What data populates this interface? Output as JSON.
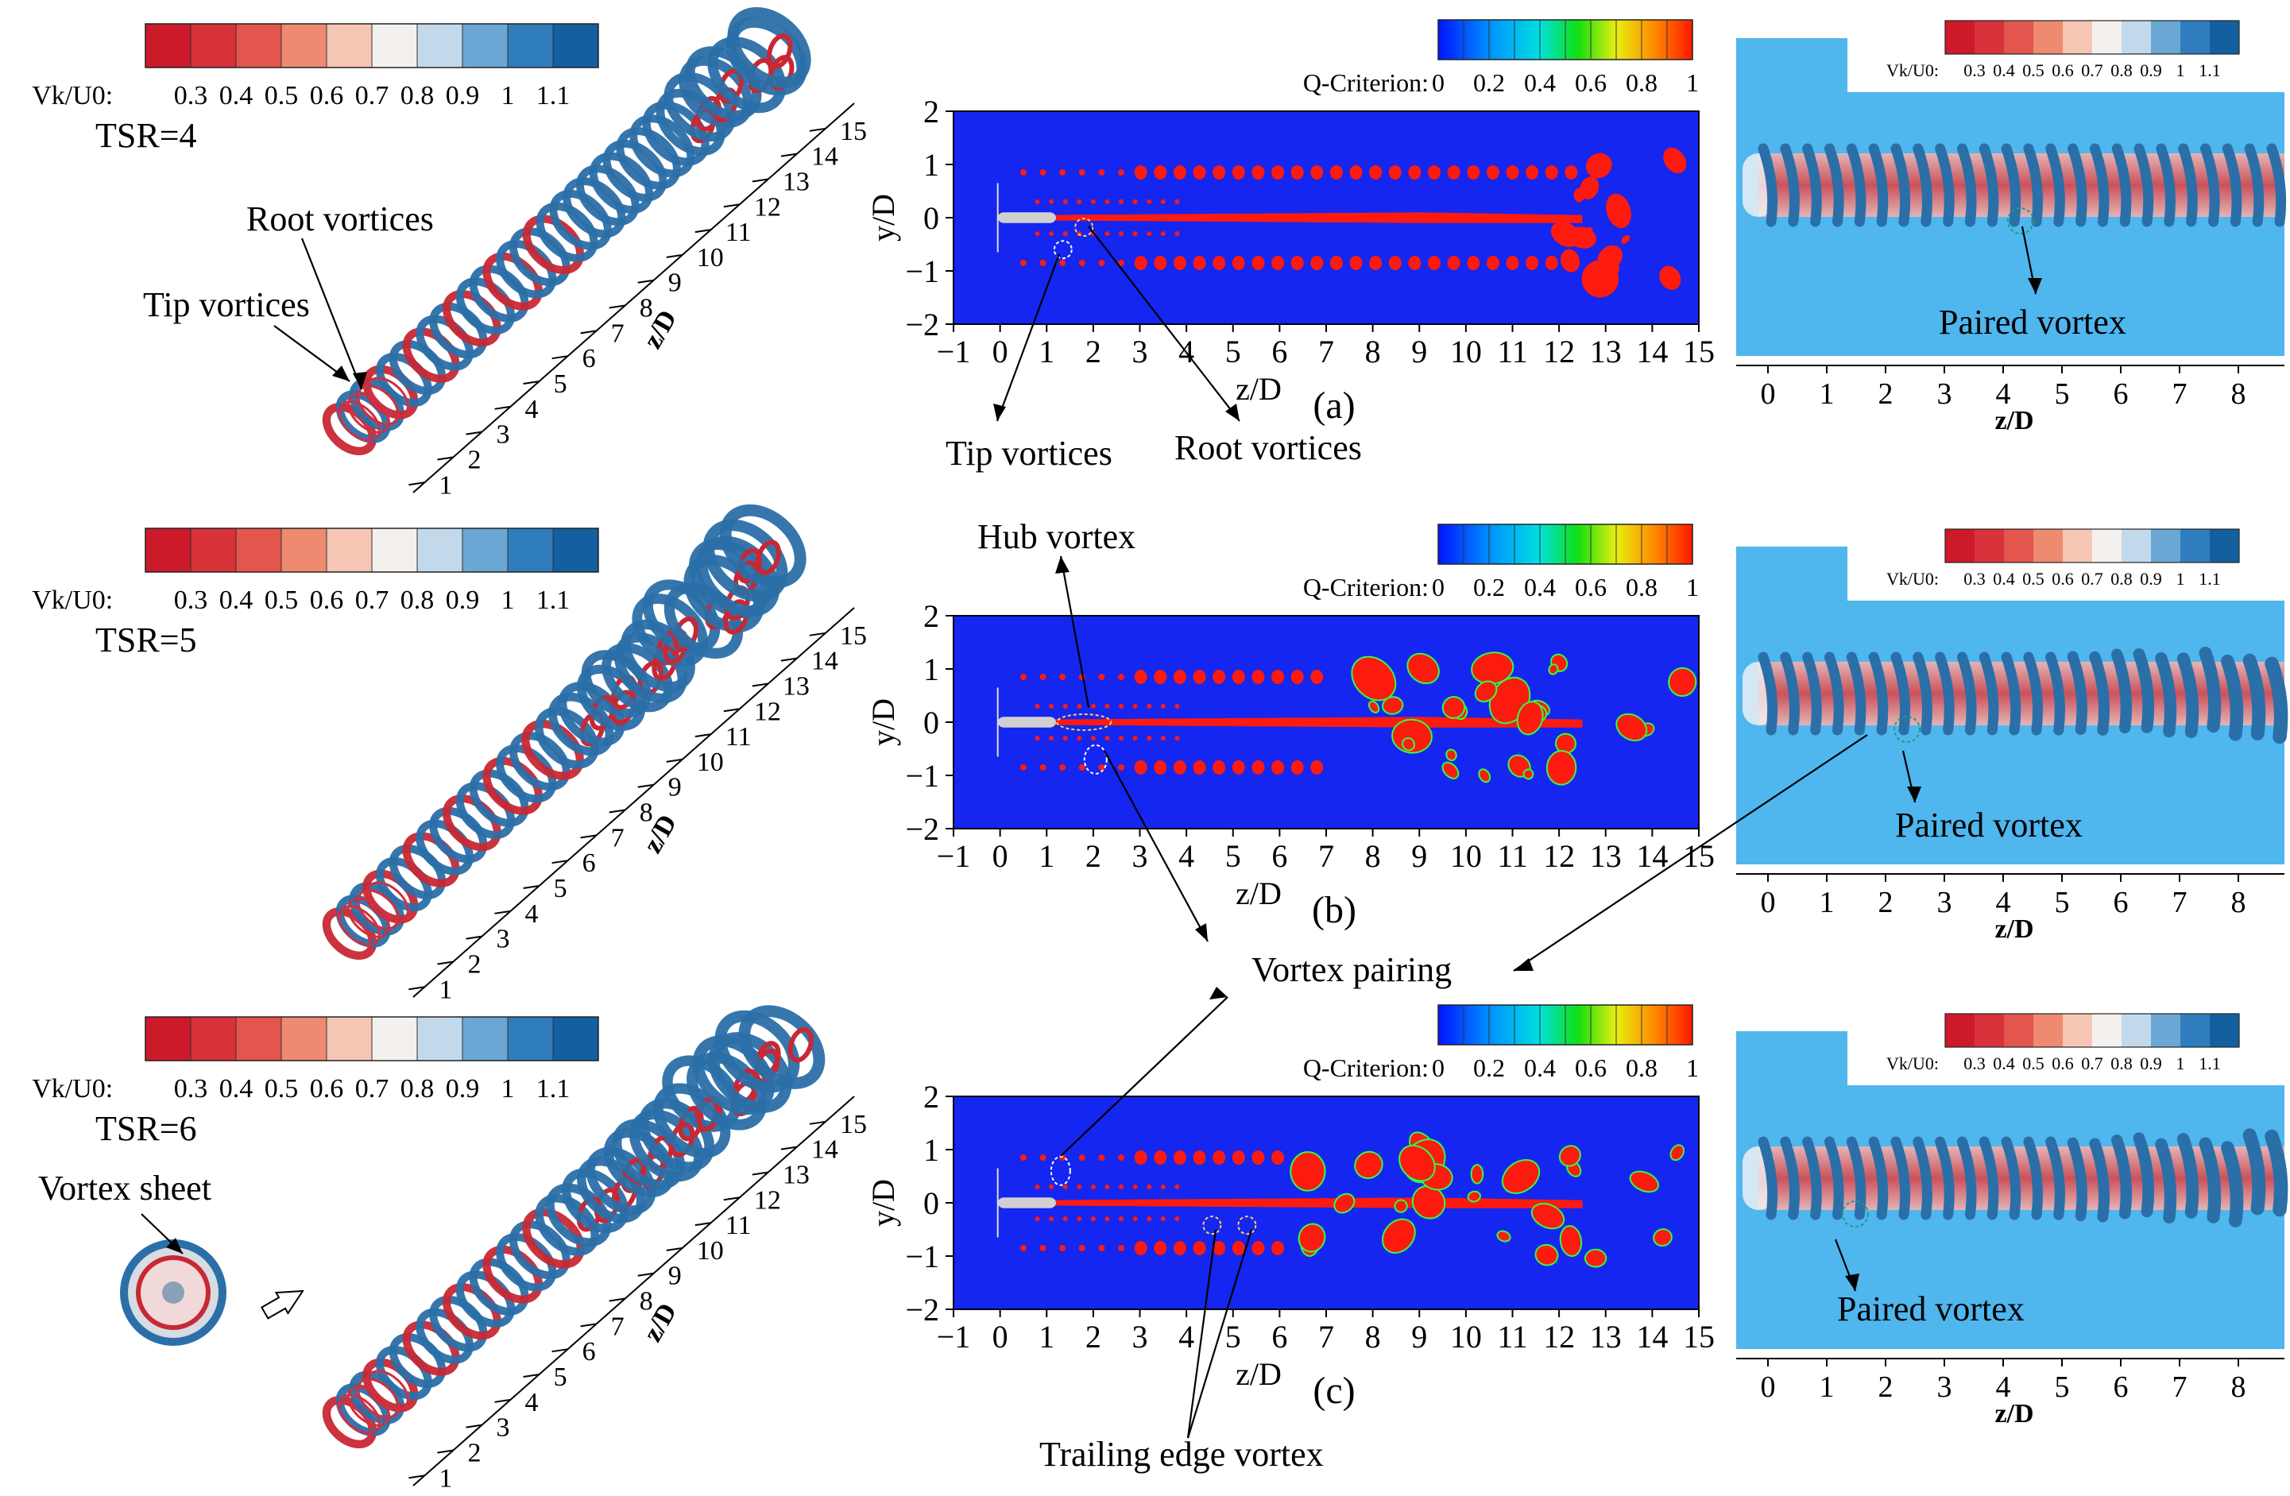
{
  "velocity_colorbar": {
    "label": "Vk/U0:",
    "ticks": [
      "0.3",
      "0.4",
      "0.5",
      "0.6",
      "0.7",
      "0.8",
      "0.9",
      "1",
      "1.1"
    ],
    "colors": [
      "#cc1a2b",
      "#d8323a",
      "#e2564d",
      "#ee8a70",
      "#f6c6b4",
      "#f4f0ee",
      "#c2d9ec",
      "#6aa7d4",
      "#2f7dbd",
      "#135f9f"
    ]
  },
  "q_colorbar": {
    "label": "Q-Criterion:",
    "ticks": [
      "0",
      "0.2",
      "0.4",
      "0.6",
      "0.8",
      "1"
    ]
  },
  "panels": [
    {
      "tsr": "TSR=4",
      "label": "(a)"
    },
    {
      "tsr": "TSR=5",
      "label": "(b)"
    },
    {
      "tsr": "TSR=6",
      "label": "(c)"
    }
  ],
  "axis3d": {
    "ticks": [
      "1",
      "2",
      "3",
      "4",
      "5",
      "6",
      "7",
      "8",
      "9",
      "10",
      "11",
      "12",
      "13",
      "14",
      "15"
    ],
    "label": "z/D"
  },
  "contour_axes": {
    "x_ticks": [
      "−1",
      "0",
      "1",
      "2",
      "3",
      "4",
      "5",
      "6",
      "7",
      "8",
      "9",
      "10",
      "11",
      "12",
      "13",
      "14",
      "15"
    ],
    "y_ticks": [
      "2",
      "1",
      "0",
      "−1",
      "−2"
    ],
    "xlabel": "z/D",
    "ylabel": "y/D"
  },
  "side_axes": {
    "ticks": [
      "0",
      "1",
      "2",
      "3",
      "4",
      "5",
      "6",
      "7",
      "8"
    ],
    "label": "z/D"
  },
  "annotations": {
    "root_vortices": "Root vortices",
    "tip_vortices": "Tip vortices",
    "vortex_sheet": "Vortex sheet",
    "hub_vortex": "Hub vortex",
    "vortex_pairing": "Vortex pairing",
    "trailing_edge_vortex": "Trailing edge vortex",
    "paired_vortex": "Paired vortex"
  },
  "colors": {
    "contour_bg": "#1426f0",
    "contour_red": "#ff1a10",
    "side_bg": "#4fb6ee",
    "tube_blue": "#2b6fa8",
    "tube_red": "#c82834"
  }
}
